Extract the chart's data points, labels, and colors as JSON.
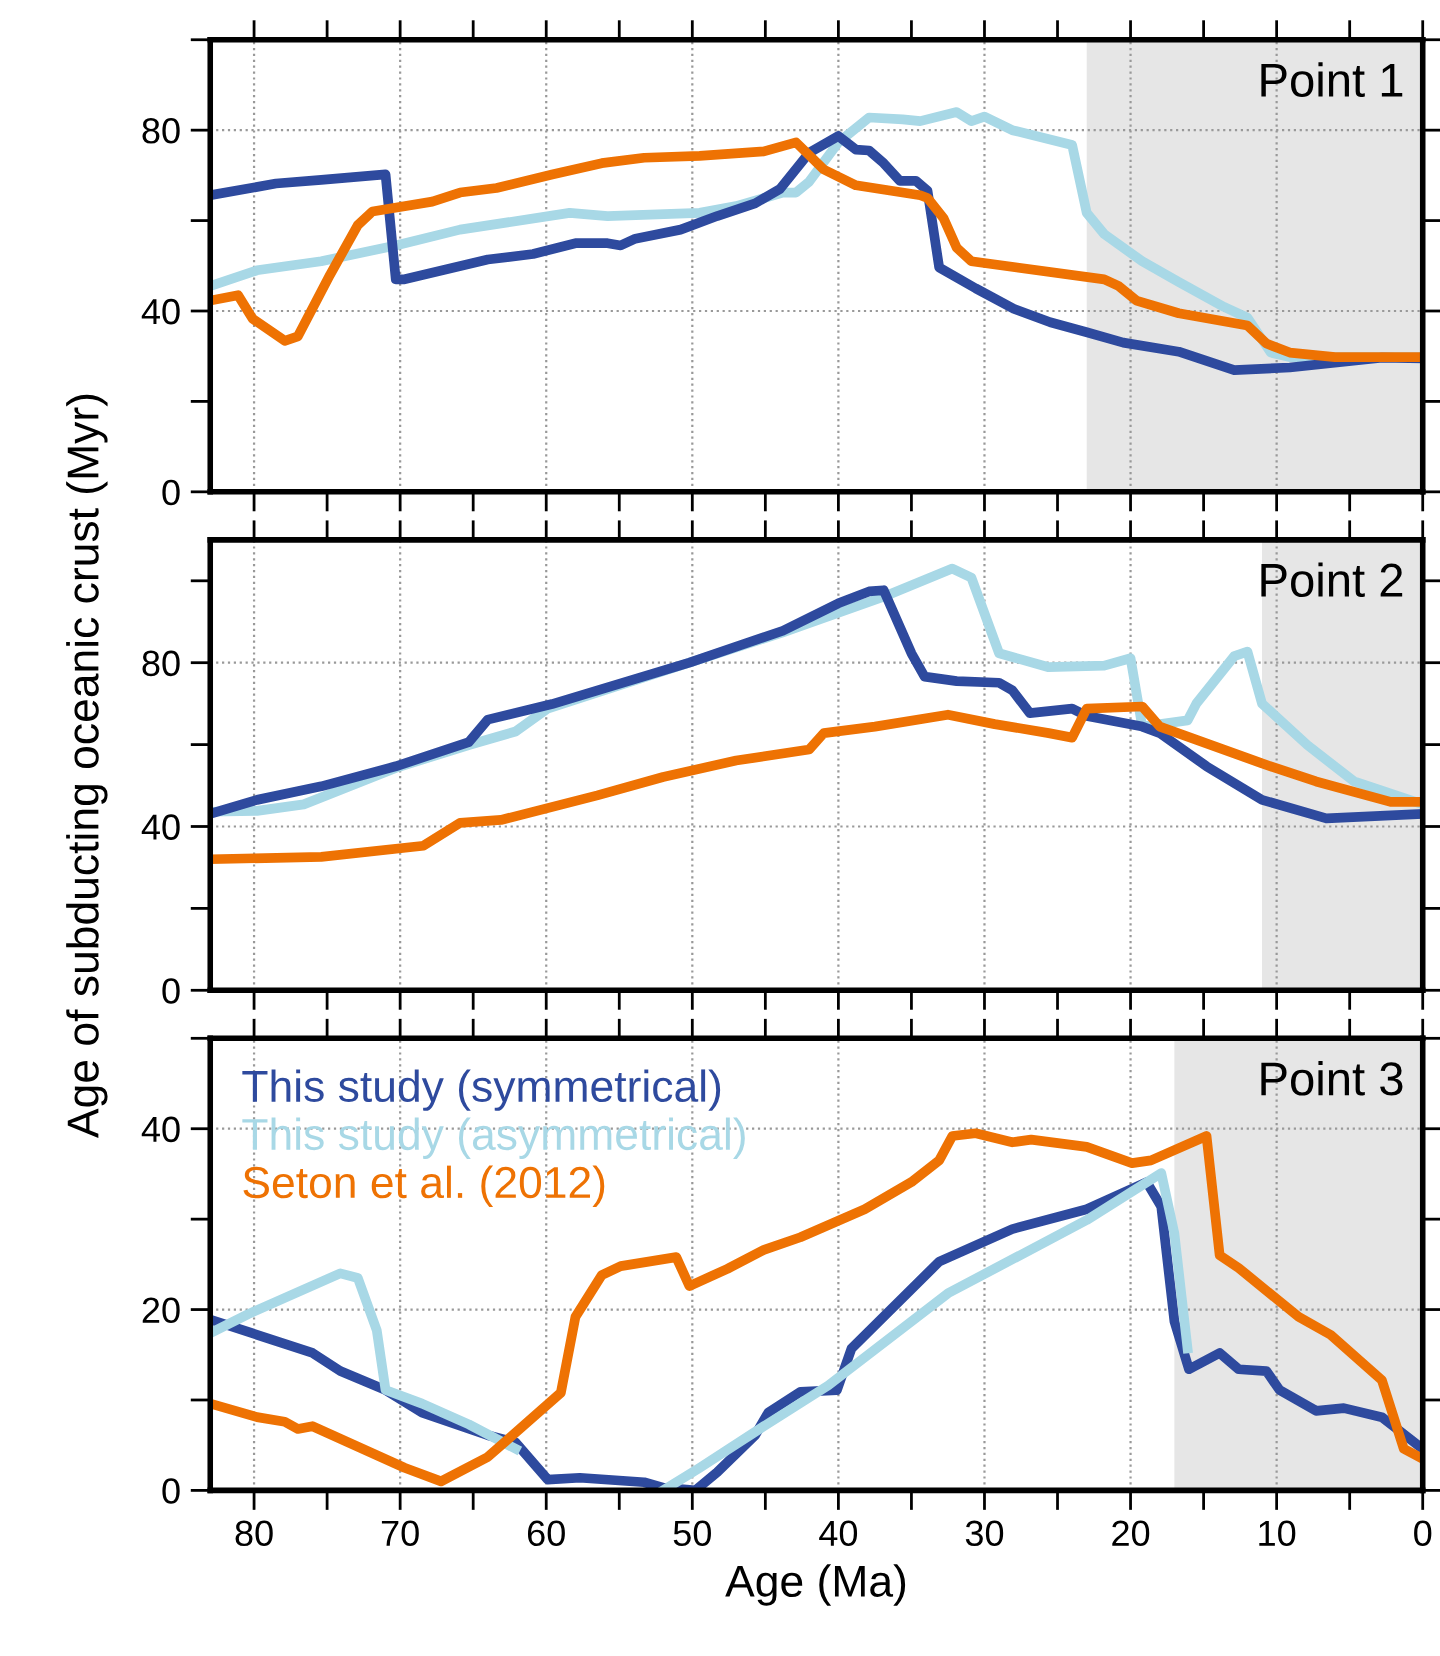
{
  "chart_data": [
    {
      "type": "line",
      "annotations": [
        "Point 1"
      ],
      "xlim": [
        83,
        0
      ],
      "ylim": [
        0,
        100
      ],
      "xticks": [
        80,
        {
          "value": 75,
          "label": null
        },
        70,
        {
          "value": 65,
          "label": null
        },
        60,
        {
          "value": 55,
          "label": null
        },
        50,
        {
          "value": 45,
          "label": null
        },
        40,
        {
          "value": 35,
          "label": null
        },
        30,
        {
          "value": 25,
          "label": null
        },
        20,
        {
          "value": 15,
          "label": null
        },
        10,
        {
          "value": 5,
          "label": null
        },
        0
      ],
      "yticks": [
        0,
        {
          "value": 20,
          "label": null
        },
        40,
        {
          "value": 60,
          "label": null
        },
        80,
        {
          "value": 100,
          "label": null
        }
      ],
      "tick_labels": "y",
      "grid": true,
      "line_style": "solid",
      "marker": "none",
      "bands": [
        {
          "axis": "x",
          "from": 23,
          "to": 0,
          "color": "#e6e6e6"
        }
      ],
      "series": [
        {
          "color": "#a8d8e6",
          "x": [
            83,
            79.8,
            75.4,
            70.3,
            65.9,
            58.4,
            55.8,
            49.5,
            47,
            43.8,
            42.9,
            42,
            40,
            37.9,
            35.6,
            34.4,
            31.9,
            30.9,
            30,
            28.1,
            24,
            23,
            21.8,
            19.2,
            16.7,
            13.6,
            12,
            10.4,
            9.1,
            0
          ],
          "values": [
            45.5,
            49,
            51,
            54.5,
            58,
            61.7,
            61,
            61.7,
            63.2,
            66.2,
            66.2,
            68.6,
            77.3,
            82.8,
            82.4,
            82,
            84,
            82,
            83,
            80,
            76.7,
            61.7,
            57,
            51,
            46.4,
            40.9,
            38.5,
            30.8,
            29.8,
            29.8
          ]
        },
        {
          "color": "#2e4a9e",
          "x": [
            83,
            78.5,
            75.4,
            71,
            70.3,
            69.7,
            64,
            60.9,
            58,
            55.8,
            54.9,
            53.9,
            50.8,
            48.3,
            45.7,
            44,
            42,
            40,
            38.8,
            37.9,
            36.9,
            35.8,
            34.7,
            33.9,
            33.1,
            30.6,
            28,
            25.5,
            23,
            20.5,
            16.7,
            12.9,
            9.1,
            2.8,
            0
          ],
          "values": [
            65.6,
            68.2,
            69,
            70.2,
            47,
            47,
            51.4,
            52.6,
            55,
            55,
            54.5,
            56,
            58,
            61,
            63.8,
            67,
            75,
            78.7,
            75.7,
            75.5,
            72.7,
            68.8,
            68.8,
            66.6,
            49.6,
            45,
            40.5,
            37.5,
            35.3,
            33,
            31,
            26.9,
            27.5,
            29.7,
            29.5
          ]
        },
        {
          "color": "#ee7203",
          "x": [
            83,
            81.1,
            80.1,
            77.9,
            77,
            74.8,
            72.9,
            71.9,
            67.8,
            65.9,
            63.4,
            59.6,
            56.2,
            53.3,
            49.5,
            45.1,
            42.9,
            41,
            38.8,
            34.4,
            33.9,
            32.8,
            31.9,
            30.9,
            21.8,
            20.8,
            19.6,
            16.7,
            12,
            10.7,
            9.1,
            6,
            0
          ],
          "values": [
            42.3,
            43.5,
            38.3,
            33.4,
            34.4,
            48,
            59,
            62,
            64.2,
            66.2,
            67.2,
            70.2,
            72.7,
            73.9,
            74.3,
            75.3,
            77.3,
            71.3,
            67.8,
            65.6,
            65,
            60.5,
            54,
            51,
            47,
            45.5,
            42.3,
            39.5,
            36.8,
            32.8,
            30.8,
            29.8,
            29.8
          ]
        }
      ]
    },
    {
      "type": "line",
      "annotations": [
        "Point 2"
      ],
      "xlim": [
        83,
        0
      ],
      "ylim": [
        0,
        110
      ],
      "xticks": [
        80,
        {
          "value": 75,
          "label": null
        },
        70,
        {
          "value": 65,
          "label": null
        },
        60,
        {
          "value": 55,
          "label": null
        },
        50,
        {
          "value": 45,
          "label": null
        },
        40,
        {
          "value": 35,
          "label": null
        },
        30,
        {
          "value": 25,
          "label": null
        },
        20,
        {
          "value": 15,
          "label": null
        },
        10,
        {
          "value": 5,
          "label": null
        },
        0
      ],
      "yticks": [
        0,
        {
          "value": 20,
          "label": null
        },
        40,
        {
          "value": 60,
          "label": null
        },
        80,
        {
          "value": 100,
          "label": null
        }
      ],
      "ylabel": "Age of subducting oceanic crust (Myr)",
      "tick_labels": "y",
      "grid": true,
      "line_style": "solid",
      "marker": "none",
      "bands": [
        {
          "axis": "x",
          "from": 11,
          "to": 0,
          "color": "#e6e6e6"
        }
      ],
      "series": [
        {
          "color": "#a8d8e6",
          "x": [
            83,
            79.8,
            76.6,
            70.3,
            65.3,
            62.1,
            59.9,
            43.8,
            36.9,
            32.2,
            30.9,
            29,
            25.6,
            21.8,
            20,
            19.2,
            16.1,
            15.5,
            12.9,
            12,
            11,
            7.9,
            4.7,
            0
          ],
          "values": [
            43.6,
            43.8,
            45.4,
            54.3,
            59.9,
            63.2,
            68.8,
            87.4,
            96.1,
            103,
            100.8,
            82.3,
            78.9,
            79.3,
            81.1,
            64.4,
            65.9,
            70,
            81.6,
            82.7,
            70,
            59.9,
            51,
            45.4
          ]
        },
        {
          "color": "#2e4a9e",
          "x": [
            83,
            79.8,
            75.4,
            70.3,
            65.3,
            64,
            59.6,
            50.2,
            43.8,
            40,
            37.9,
            36.9,
            35,
            34.1,
            31.9,
            29,
            28.1,
            26.9,
            24,
            23,
            19.2,
            18,
            14.8,
            11,
            6.6,
            0
          ],
          "values": [
            43.1,
            46.5,
            49.8,
            54.7,
            60.6,
            66.1,
            69.9,
            80,
            87.8,
            94.5,
            97.4,
            97.7,
            82.3,
            76.6,
            75.5,
            75.1,
            73.3,
            67.7,
            68.8,
            67,
            64.4,
            62.8,
            54.7,
            46.5,
            42,
            43.1
          ]
        },
        {
          "color": "#ee7203",
          "x": [
            83,
            75.4,
            68.4,
            65.9,
            63.1,
            56.5,
            52,
            47,
            42,
            41,
            37.5,
            32.5,
            29.3,
            25.6,
            24,
            23,
            19.2,
            18,
            11,
            7.3,
            2.2,
            0
          ],
          "values": [
            32,
            32.6,
            35.3,
            40.9,
            41.6,
            47.6,
            52.1,
            56.1,
            58.8,
            62.8,
            64.4,
            67.3,
            65,
            62.8,
            61.7,
            68.8,
            69.3,
            64.4,
            55.4,
            51,
            46,
            46
          ]
        }
      ]
    },
    {
      "type": "line",
      "annotations": [
        "Point 3"
      ],
      "xlim": [
        83,
        0
      ],
      "ylim": [
        0,
        50
      ],
      "xticks": [
        80,
        {
          "value": 75,
          "label": null
        },
        70,
        {
          "value": 65,
          "label": null
        },
        60,
        {
          "value": 55,
          "label": null
        },
        50,
        {
          "value": 45,
          "label": null
        },
        40,
        {
          "value": 35,
          "label": null
        },
        30,
        {
          "value": 25,
          "label": null
        },
        20,
        {
          "value": 15,
          "label": null
        },
        10,
        {
          "value": 5,
          "label": null
        },
        0
      ],
      "yticks": [
        0,
        {
          "value": 10,
          "label": null
        },
        20,
        {
          "value": 30,
          "label": null
        },
        40,
        {
          "value": 50,
          "label": null
        }
      ],
      "xlabel": "Age (Ma)",
      "grid": true,
      "legend": "top left",
      "line_style": "solid",
      "marker": "none",
      "bands": [
        {
          "axis": "x",
          "from": 17,
          "to": 0,
          "color": "#e6e6e6"
        }
      ],
      "series": [
        {
          "name": "This study (symmetrical)",
          "color": "#2e4a9e",
          "x": [
            83,
            76,
            74.1,
            71,
            68.5,
            64,
            62.1,
            59.9,
            57.7,
            53.3,
            52,
            49.8,
            48.3,
            45.7,
            44.8,
            42.6,
            40.1,
            39.1,
            33.1,
            28.1,
            23,
            18.9,
            17.9,
            17,
            16,
            13.9,
            12.6,
            10.7,
            9.8,
            7.3,
            5.4,
            2.8,
            0
          ],
          "values": [
            18.9,
            15.2,
            13.2,
            11.1,
            8.6,
            6.1,
            5.3,
            1.2,
            1.4,
            0.9,
            0.3,
            0,
            2,
            6.1,
            8.6,
            10.9,
            11.1,
            15.7,
            25.3,
            28.9,
            31.1,
            34.1,
            31.4,
            18.7,
            13.4,
            15.2,
            13.4,
            13.2,
            11.1,
            8.8,
            9.1,
            8.1,
            4.6
          ]
        },
        {
          "name": "This study (asymmetrical)",
          "color": "#a8d8e6",
          "x": [
            83,
            80.4,
            74.1,
            72.9,
            71.6,
            71,
            68.5,
            65.3,
            62.1,
            59.9,
            57.7,
            53.3,
            52,
            49.5,
            45.1,
            40.7,
            32.5,
            23,
            17.9,
            17,
            16.1
          ],
          "values": [
            17.4,
            19.5,
            24,
            23.5,
            17.7,
            11.1,
            9.6,
            7.3,
            4.6,
            null,
            null,
            null,
            0,
            2.5,
            7.1,
            11.6,
            21.8,
            29.9,
            35.1,
            28.4,
            15.7
          ]
        },
        {
          "name": "Seton et al. (2012)",
          "color": "#ee7203",
          "x": [
            83,
            79.8,
            77.9,
            77,
            76,
            69.7,
            67.2,
            64,
            59,
            58,
            56.2,
            54.9,
            51.1,
            50.2,
            47.6,
            45.1,
            42.6,
            38.2,
            35,
            33.1,
            32.2,
            30.6,
            28.1,
            26.8,
            23,
            19.9,
            18.6,
            14.8,
            13.9,
            12.6,
            8.5,
            6.3,
            2.8,
            1.3,
            0
          ],
          "values": [
            9.6,
            8.1,
            7.6,
            6.8,
            7.1,
            2.5,
            1,
            3.7,
            10.8,
            19.2,
            23.8,
            24.8,
            25.8,
            22.6,
            24.5,
            26.6,
            28,
            31.1,
            34.1,
            36.5,
            39.2,
            39.5,
            38.5,
            38.8,
            38,
            36.2,
            36.5,
            39.2,
            26,
            24.6,
            19.2,
            17.2,
            12.2,
            4.6,
            3.5
          ]
        }
      ]
    }
  ]
}
